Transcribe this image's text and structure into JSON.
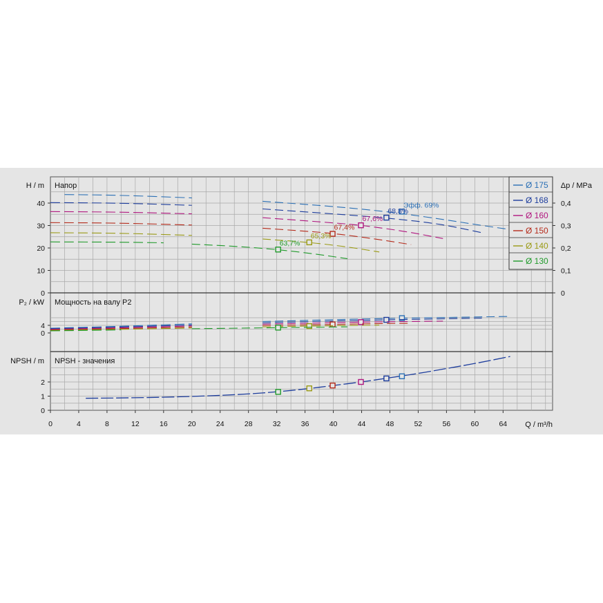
{
  "colors": {
    "background": "#e5e5e5",
    "grid": "#a8a8a8",
    "d175": "#2a6fb5",
    "d168": "#1c3c9c",
    "d160": "#b0157e",
    "d150": "#b52a1a",
    "d140": "#9a9a14",
    "d130": "#1f9a2a"
  },
  "chart_data": [
    {
      "type": "line",
      "title": "Напор",
      "ylabel": "H / m",
      "y2label": "Δp / MPa",
      "ylim": [
        0,
        50
      ],
      "y_ticks": [
        "0",
        "10",
        "20",
        "30",
        "40"
      ],
      "y2_ticks": [
        "0",
        "0,1",
        "0,2",
        "0,3",
        "0,4"
      ],
      "legend": [
        "Ø 175",
        "Ø 168",
        "Ø 160",
        "Ø 150",
        "Ø 140",
        "Ø 130"
      ],
      "legend_position": "top-right",
      "series": [
        {
          "name": "Ø 175",
          "color": "#2a6fb5",
          "x": [
            2,
            10,
            20,
            30,
            40,
            46,
            50,
            56,
            60,
            65
          ],
          "y": [
            43.8,
            43.5,
            42.3,
            40.8,
            38.5,
            36.7,
            35.2,
            32.5,
            30.5,
            28.2
          ],
          "point": {
            "x": 49.7,
            "y": 36.2
          },
          "eff_label": "Эфф.  69%"
        },
        {
          "name": "Ø 168",
          "color": "#1c3c9c",
          "x": [
            0,
            10,
            20,
            30,
            40,
            47.5,
            55,
            61
          ],
          "y": [
            40.2,
            40,
            39,
            37.4,
            35.2,
            33.4,
            30.8,
            26.8
          ],
          "point": {
            "x": 47.5,
            "y": 33.5
          },
          "eff_label": "68,8%"
        },
        {
          "name": "Ø 160",
          "color": "#b0157e",
          "x": [
            0,
            10,
            20,
            30,
            40,
            44,
            50,
            55.5
          ],
          "y": [
            36.2,
            36,
            35.2,
            33.5,
            31.2,
            30.1,
            27.5,
            24.2
          ],
          "point": {
            "x": 43.9,
            "y": 30.1
          },
          "eff_label": "67,6%"
        },
        {
          "name": "Ø 150",
          "color": "#b52a1a",
          "x": [
            0,
            10,
            20,
            30,
            36,
            40,
            46,
            51
          ],
          "y": [
            31.3,
            31.1,
            30.2,
            28.8,
            27.5,
            26.5,
            24,
            21.5
          ],
          "point": {
            "x": 39.9,
            "y": 26.3
          },
          "eff_label": "67,4%"
        },
        {
          "name": "Ø 140",
          "color": "#9a9a14",
          "x": [
            0,
            10,
            20,
            30,
            36.6,
            42,
            46.5
          ],
          "y": [
            26.8,
            26.6,
            25.6,
            24,
            22.5,
            20.5,
            18.2
          ],
          "point": {
            "x": 36.6,
            "y": 22.5
          },
          "eff_label": "65,3%"
        },
        {
          "name": "Ø 130",
          "color": "#1f9a2a",
          "x": [
            0,
            10,
            16,
            20,
            26,
            32.2,
            38,
            42
          ],
          "y": [
            22.7,
            22.6,
            22.3,
            21.7,
            20.8,
            19.3,
            17.1,
            15.2
          ],
          "point": {
            "x": 32.2,
            "y": 19.3
          },
          "eff_label": "63,7%"
        }
      ]
    },
    {
      "type": "line",
      "title": "Мощность на валу P2",
      "ylabel": "P₂ / kW",
      "ylim": [
        0,
        8.8
      ],
      "y_ticks": [
        "0",
        "4"
      ],
      "series": [
        {
          "name": "Ø 175",
          "color": "#2a6fb5",
          "x": [
            0,
            10,
            20,
            30,
            40,
            50,
            60,
            65
          ],
          "y": [
            2.5,
            3.5,
            4.8,
            6.0,
            7.0,
            7.8,
            8.4,
            8.7
          ],
          "point": {
            "x": 49.7,
            "y": 7.8
          }
        },
        {
          "name": "Ø 168",
          "color": "#1c3c9c",
          "x": [
            0,
            10,
            20,
            30,
            40,
            47.5,
            55,
            61
          ],
          "y": [
            2.2,
            3.1,
            4.2,
            5.3,
            6.3,
            6.9,
            7.4,
            7.8
          ],
          "point": {
            "x": 47.5,
            "y": 6.9
          }
        },
        {
          "name": "Ø 160",
          "color": "#b0157e",
          "x": [
            0,
            10,
            20,
            30,
            40,
            44,
            50,
            55.5
          ],
          "y": [
            1.9,
            2.7,
            3.7,
            4.6,
            5.4,
            5.7,
            6.0,
            6.2
          ],
          "point": {
            "x": 43.9,
            "y": 5.7
          }
        },
        {
          "name": "Ø 150",
          "color": "#b52a1a",
          "x": [
            0,
            10,
            20,
            30,
            40,
            46,
            51
          ],
          "y": [
            1.6,
            2.3,
            3.1,
            3.9,
            4.5,
            4.9,
            5.1
          ],
          "point": {
            "x": 39.9,
            "y": 4.5
          }
        },
        {
          "name": "Ø 140",
          "color": "#9a9a14",
          "x": [
            0,
            10,
            20,
            30,
            36.6,
            42,
            46.5
          ],
          "y": [
            1.3,
            1.9,
            2.6,
            3.2,
            3.6,
            3.9,
            4.1
          ],
          "point": {
            "x": 36.6,
            "y": 3.6
          }
        },
        {
          "name": "Ø 130",
          "color": "#1f9a2a",
          "x": [
            0,
            10,
            20,
            32.2,
            38,
            42
          ],
          "y": [
            1.1,
            1.6,
            2.2,
            2.8,
            3.0,
            3.2
          ],
          "point": {
            "x": 32.2,
            "y": 2.8
          }
        }
      ]
    },
    {
      "type": "line",
      "title": "NPSH - значения",
      "ylabel": "NPSH / m",
      "xlabel": "Q / m³/h",
      "ylim": [
        0,
        3.3
      ],
      "y_ticks": [
        "0",
        "1",
        "2"
      ],
      "x_ticks": [
        "0",
        "4",
        "8",
        "12",
        "16",
        "20",
        "24",
        "28",
        "32",
        "36",
        "40",
        "44",
        "48",
        "52",
        "56",
        "60",
        "64"
      ],
      "xlim": [
        0,
        71
      ],
      "series": [
        {
          "name": "NPSH",
          "color": "#1c3c9c",
          "x": [
            5,
            10,
            16,
            20,
            24,
            28,
            32,
            36,
            40,
            44,
            48,
            52,
            56,
            60,
            65
          ],
          "y": [
            0.85,
            0.87,
            0.92,
            0.98,
            1.05,
            1.15,
            1.3,
            1.5,
            1.75,
            2.0,
            2.3,
            2.6,
            2.95,
            3.3,
            3.8
          ]
        }
      ],
      "points": [
        {
          "x": 32.2,
          "y": 1.3,
          "color": "#1f9a2a"
        },
        {
          "x": 36.6,
          "y": 1.55,
          "color": "#9a9a14"
        },
        {
          "x": 39.9,
          "y": 1.75,
          "color": "#b52a1a"
        },
        {
          "x": 43.9,
          "y": 2.0,
          "color": "#b0157e"
        },
        {
          "x": 47.5,
          "y": 2.25,
          "color": "#1c3c9c"
        },
        {
          "x": 49.7,
          "y": 2.4,
          "color": "#2a6fb5"
        }
      ]
    }
  ]
}
